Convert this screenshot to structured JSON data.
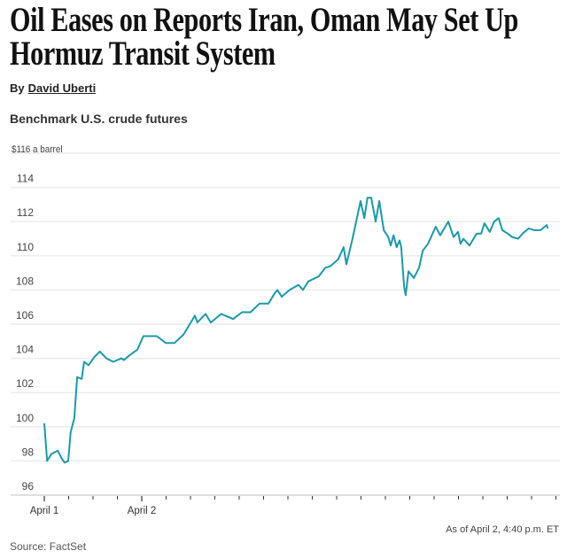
{
  "article": {
    "headline": "Oil Eases on Reports Iran, Oman May Set Up Hormuz Transit System",
    "byline_prefix": "By",
    "author": "David Uberti"
  },
  "chart_data": {
    "type": "line",
    "title": "Benchmark U.S. crude futures",
    "unit_label": "$116 a barrel",
    "ylim": [
      96,
      116
    ],
    "y_ticks": [
      96,
      98,
      100,
      102,
      104,
      106,
      108,
      110,
      112,
      114,
      116
    ],
    "y_tick_labels": [
      "96",
      "98",
      "100",
      "102",
      "104",
      "106",
      "108",
      "110",
      "112",
      "114"
    ],
    "x_ticks": [
      {
        "label": "April 1",
        "time": "Apr 1 20:00"
      },
      {
        "label": "April 2",
        "time": "Apr 2 00:00"
      }
    ],
    "grid": true,
    "line_color": "#1a9aaa",
    "as_of": "As of April 2, 4:40 p.m. ET",
    "source": "Source: FactSet",
    "points": [
      [
        "Apr 1 20:00",
        100.2
      ],
      [
        "Apr 1 20:07",
        98.0
      ],
      [
        "Apr 1 20:17",
        98.4
      ],
      [
        "Apr 1 20:33",
        98.6
      ],
      [
        "Apr 1 20:44",
        98.1
      ],
      [
        "Apr 1 20:50",
        97.9
      ],
      [
        "Apr 1 20:59",
        98.0
      ],
      [
        "Apr 1 21:05",
        99.7
      ],
      [
        "Apr 1 21:14",
        100.5
      ],
      [
        "Apr 1 21:21",
        102.9
      ],
      [
        "Apr 1 21:32",
        102.8
      ],
      [
        "Apr 1 21:38",
        103.8
      ],
      [
        "Apr 1 21:49",
        103.6
      ],
      [
        "Apr 1 22:04",
        104.1
      ],
      [
        "Apr 1 22:17",
        104.4
      ],
      [
        "Apr 1 22:33",
        104.0
      ],
      [
        "Apr 1 22:50",
        103.8
      ],
      [
        "Apr 1 23:10",
        104.0
      ],
      [
        "Apr 1 23:16",
        103.9
      ],
      [
        "Apr 1 23:31",
        104.2
      ],
      [
        "Apr 1 23:49",
        104.5
      ],
      [
        "Apr 2 00:04",
        105.3
      ],
      [
        "Apr 2 00:22",
        105.3
      ],
      [
        "Apr 2 00:37",
        105.3
      ],
      [
        "Apr 2 00:59",
        104.9
      ],
      [
        "Apr 2 01:21",
        104.9
      ],
      [
        "Apr 2 01:43",
        105.4
      ],
      [
        "Apr 2 02:11",
        106.5
      ],
      [
        "Apr 2 02:17",
        106.1
      ],
      [
        "Apr 2 02:37",
        106.6
      ],
      [
        "Apr 2 02:50",
        106.1
      ],
      [
        "Apr 2 03:16",
        106.6
      ],
      [
        "Apr 2 03:45",
        106.3
      ],
      [
        "Apr 2 04:07",
        106.7
      ],
      [
        "Apr 2 04:28",
        106.7
      ],
      [
        "Apr 2 04:50",
        107.2
      ],
      [
        "Apr 2 05:12",
        107.2
      ],
      [
        "Apr 2 05:27",
        107.8
      ],
      [
        "Apr 2 05:34",
        108.0
      ],
      [
        "Apr 2 05:45",
        107.6
      ],
      [
        "Apr 2 05:49",
        107.7
      ],
      [
        "Apr 2 06:04",
        108.0
      ],
      [
        "Apr 2 06:26",
        108.3
      ],
      [
        "Apr 2 06:37",
        108.0
      ],
      [
        "Apr 2 06:50",
        108.5
      ],
      [
        "Apr 2 07:16",
        108.8
      ],
      [
        "Apr 2 07:32",
        109.3
      ],
      [
        "Apr 2 07:45",
        109.4
      ],
      [
        "Apr 2 08:04",
        109.8
      ],
      [
        "Apr 2 08:17",
        110.5
      ],
      [
        "Apr 2 08:24",
        109.5
      ],
      [
        "Apr 2 08:39",
        111.0
      ],
      [
        "Apr 2 08:59",
        113.2
      ],
      [
        "Apr 2 09:08",
        112.2
      ],
      [
        "Apr 2 09:16",
        113.4
      ],
      [
        "Apr 2 09:25",
        113.4
      ],
      [
        "Apr 2 09:36",
        112.0
      ],
      [
        "Apr 2 09:45",
        113.2
      ],
      [
        "Apr 2 09:56",
        111.5
      ],
      [
        "Apr 2 10:07",
        111.1
      ],
      [
        "Apr 2 10:13",
        110.6
      ],
      [
        "Apr 2 10:20",
        111.2
      ],
      [
        "Apr 2 10:28",
        110.5
      ],
      [
        "Apr 2 10:35",
        110.9
      ],
      [
        "Apr 2 10:39",
        110.5
      ],
      [
        "Apr 2 10:46",
        108.2
      ],
      [
        "Apr 2 10:50",
        107.7
      ],
      [
        "Apr 2 10:57",
        109.1
      ],
      [
        "Apr 2 11:10",
        108.7
      ],
      [
        "Apr 2 11:23",
        109.3
      ],
      [
        "Apr 2 11:32",
        110.3
      ],
      [
        "Apr 2 11:45",
        110.7
      ],
      [
        "Apr 2 12:04",
        111.7
      ],
      [
        "Apr 2 12:15",
        111.2
      ],
      [
        "Apr 2 12:35",
        112.0
      ],
      [
        "Apr 2 12:48",
        111.1
      ],
      [
        "Apr 2 12:59",
        111.4
      ],
      [
        "Apr 2 13:05",
        110.7
      ],
      [
        "Apr 2 13:12",
        111.0
      ],
      [
        "Apr 2 13:27",
        110.6
      ],
      [
        "Apr 2 13:45",
        111.3
      ],
      [
        "Apr 2 13:56",
        111.3
      ],
      [
        "Apr 2 14:04",
        111.9
      ],
      [
        "Apr 2 14:17",
        111.4
      ],
      [
        "Apr 2 14:28",
        112.0
      ],
      [
        "Apr 2 14:39",
        112.2
      ],
      [
        "Apr 2 14:48",
        111.5
      ],
      [
        "Apr 2 15:01",
        111.3
      ],
      [
        "Apr 2 15:12",
        111.1
      ],
      [
        "Apr 2 15:27",
        111.0
      ],
      [
        "Apr 2 15:38",
        111.3
      ],
      [
        "Apr 2 15:53",
        111.6
      ],
      [
        "Apr 2 16:07",
        111.5
      ],
      [
        "Apr 2 16:22",
        111.5
      ],
      [
        "Apr 2 16:37",
        111.8
      ],
      [
        "Apr 2 16:40",
        111.6
      ]
    ]
  }
}
